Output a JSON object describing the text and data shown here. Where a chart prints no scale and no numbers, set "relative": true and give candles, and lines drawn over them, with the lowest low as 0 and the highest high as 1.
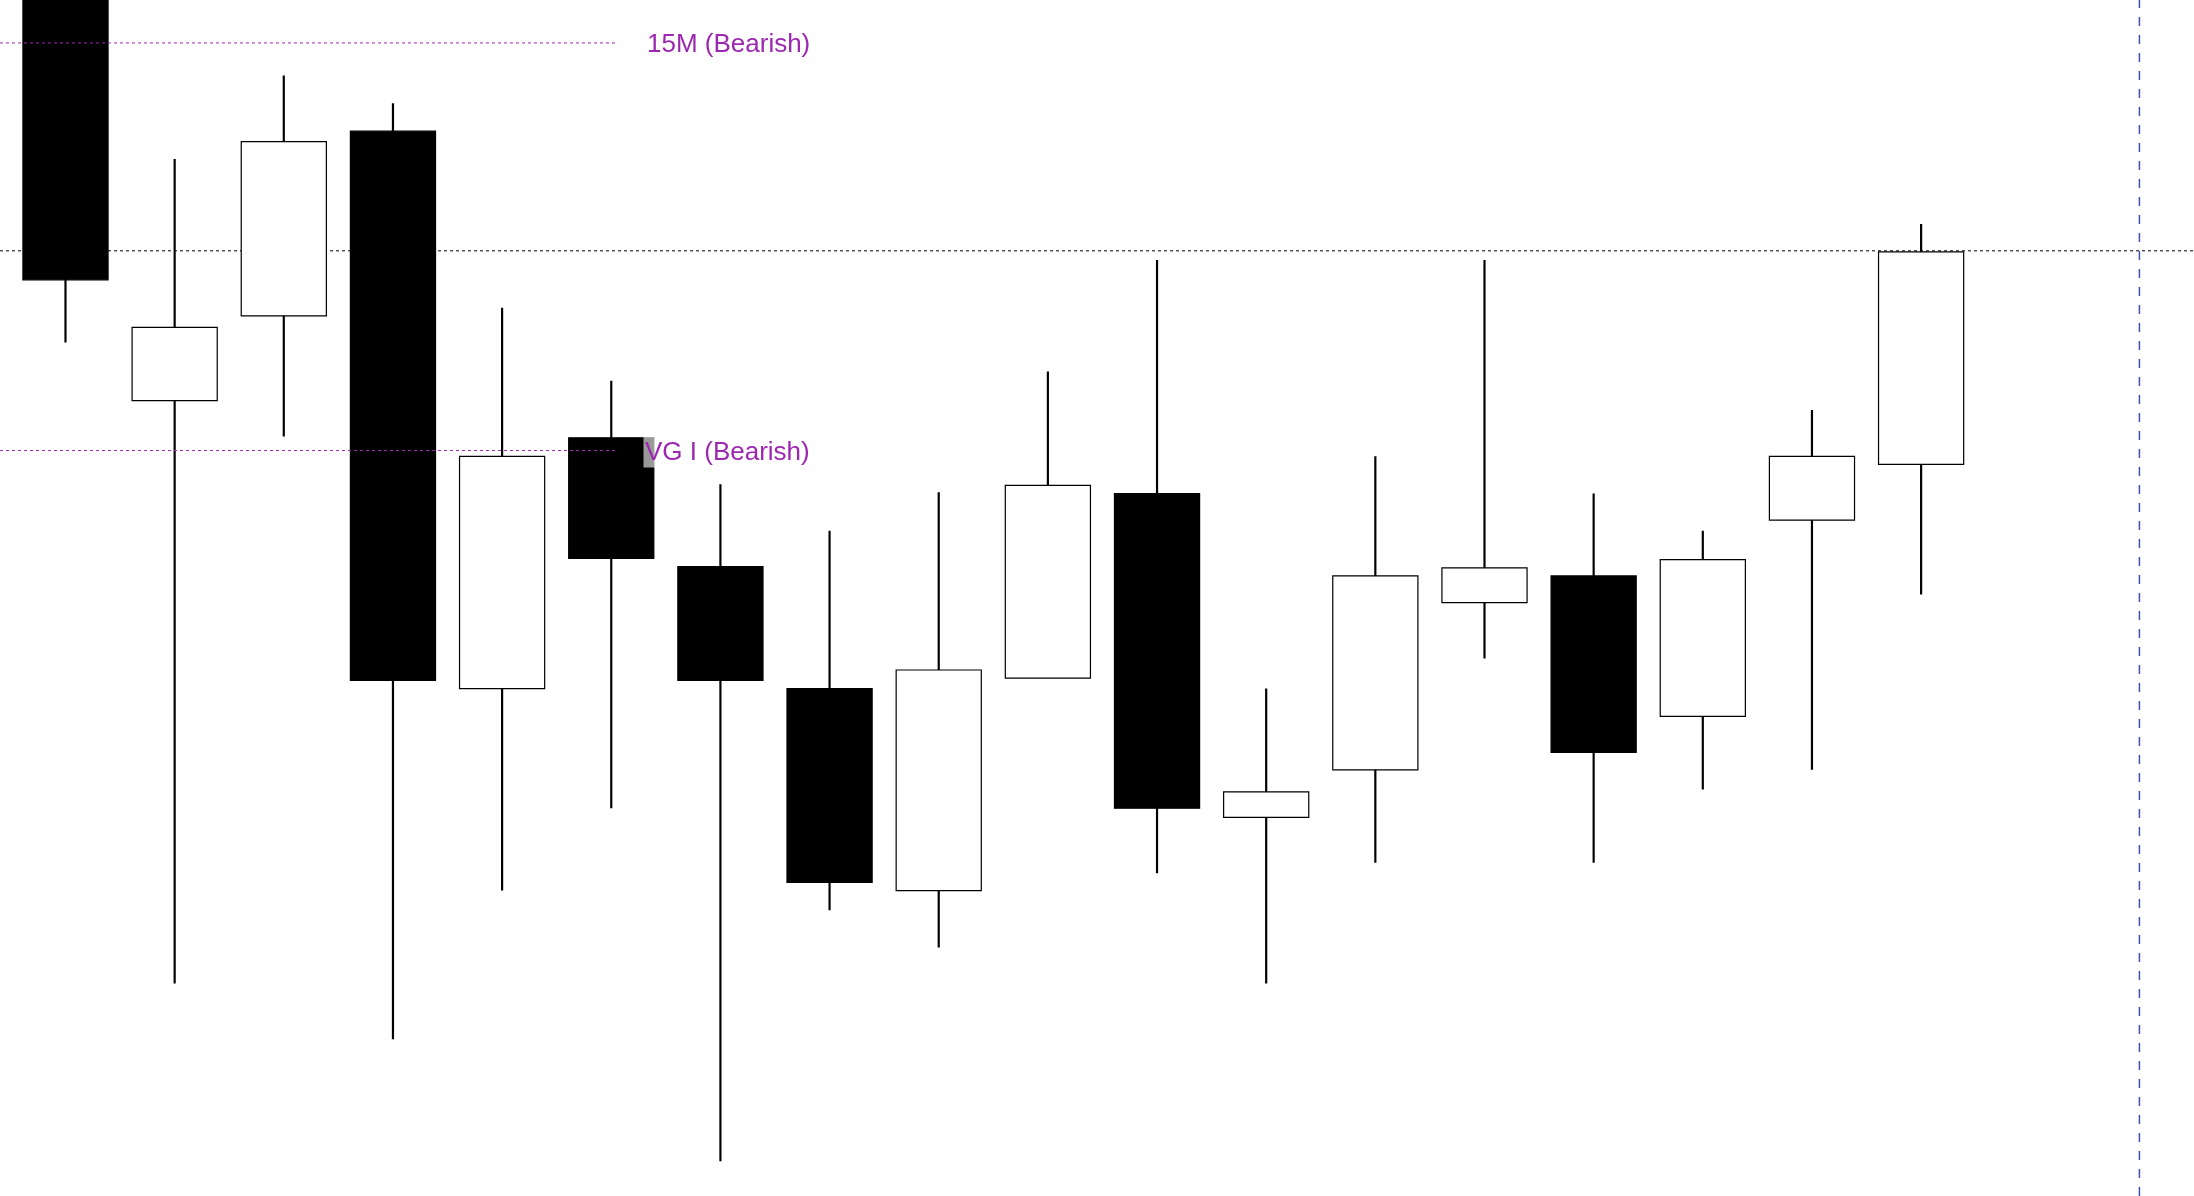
{
  "chart_data": {
    "type": "candlestick",
    "relative": true,
    "categories": [
      null,
      null,
      null,
      null,
      null,
      null,
      null,
      null,
      null,
      null,
      null,
      null,
      null,
      null,
      null,
      null,
      null,
      null
    ],
    "ohlc": [
      [
        1.0,
        1.0,
        0.705,
        0.759
      ],
      [
        0.655,
        0.863,
        0.153,
        0.718
      ],
      [
        0.728,
        0.935,
        0.624,
        0.878
      ],
      [
        0.887,
        0.911,
        0.105,
        0.414
      ],
      [
        0.407,
        0.735,
        0.233,
        0.607
      ],
      [
        0.623,
        0.672,
        0.304,
        0.519
      ],
      [
        0.512,
        0.583,
        0.0,
        0.414
      ],
      [
        0.407,
        0.543,
        0.216,
        0.24
      ],
      [
        0.233,
        0.576,
        0.184,
        0.423
      ],
      [
        0.416,
        0.68,
        0.416,
        0.582
      ],
      [
        0.575,
        0.776,
        0.248,
        0.304
      ],
      [
        0.296,
        0.407,
        0.153,
        0.318
      ],
      [
        0.337,
        0.607,
        0.257,
        0.504
      ],
      [
        0.481,
        0.776,
        0.433,
        0.511
      ],
      [
        0.504,
        0.575,
        0.257,
        0.352
      ],
      [
        0.383,
        0.543,
        0.32,
        0.518
      ],
      [
        0.552,
        0.647,
        0.337,
        0.607
      ],
      [
        0.6,
        0.807,
        0.488,
        0.783
      ]
    ],
    "ref_lines": [
      {
        "axis": "y",
        "value": 0.963,
        "label": "15M (Bearish)",
        "color": "#9c27b0",
        "line_style": "dotted"
      },
      {
        "axis": "y",
        "value": 0.612,
        "label": "VG I (Bearish)",
        "color": "#9c27b0",
        "line_style": "dotted"
      },
      {
        "axis": "y",
        "value": 0.784,
        "label": null,
        "color": "#000000",
        "line_style": "dotted"
      }
    ]
  }
}
